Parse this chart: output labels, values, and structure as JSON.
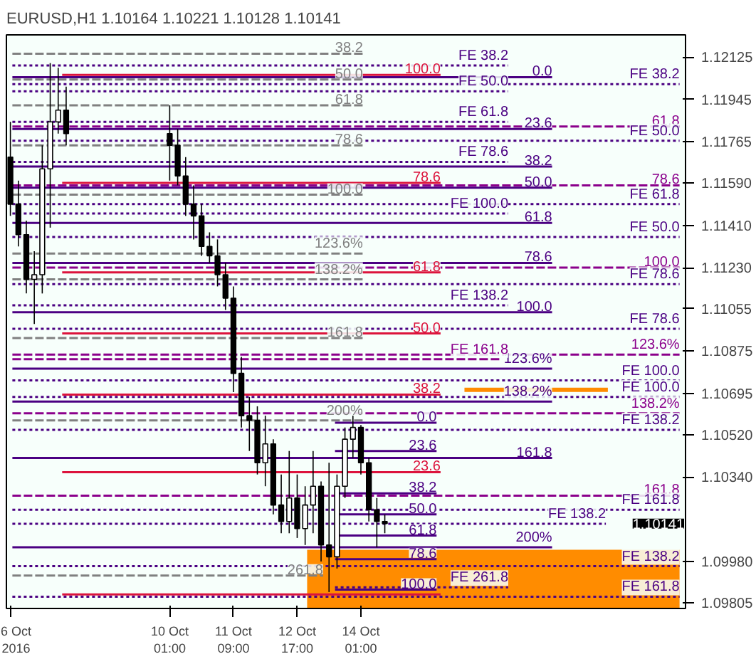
{
  "chart_data": {
    "type": "candlestick",
    "title": "EURUSD,H1  1.10164 1.10221 1.10128 1.10141",
    "x": [
      "2016-10-06T17:00",
      "2016-10-06T21:00",
      "2016-10-07T01:00",
      "2016-10-07T05:00",
      "2016-10-07T09:00",
      "2016-10-07T13:00",
      "2016-10-07T17:00",
      "2016-10-07T21:00",
      "2016-10-10T01:00",
      "2016-10-10T05:00",
      "2016-10-10T09:00",
      "2016-10-10T13:00",
      "2016-10-10T17:00",
      "2016-10-10T21:00",
      "2016-10-11T01:00",
      "2016-10-11T05:00",
      "2016-10-11T09:00",
      "2016-10-11T13:00",
      "2016-10-11T17:00",
      "2016-10-11T21:00",
      "2016-10-12T01:00",
      "2016-10-12T05:00",
      "2016-10-12T09:00",
      "2016-10-12T13:00",
      "2016-10-12T17:00",
      "2016-10-12T21:00",
      "2016-10-13T01:00",
      "2016-10-13T05:00",
      "2016-10-13T09:00",
      "2016-10-13T13:00",
      "2016-10-13T17:00",
      "2016-10-13T21:00",
      "2016-10-14T01:00",
      "2016-10-14T05:00",
      "2016-10-14T09:00",
      "2016-10-14T13:00"
    ],
    "ohlc": [
      [
        1.117,
        1.1185,
        1.1145,
        1.115
      ],
      [
        1.115,
        1.116,
        1.1132,
        1.1137
      ],
      [
        1.1137,
        1.1143,
        1.1112,
        1.1118
      ],
      [
        1.1118,
        1.113,
        1.1099,
        1.112
      ],
      [
        1.112,
        1.1175,
        1.1112,
        1.1165
      ],
      [
        1.1165,
        1.121,
        1.114,
        1.1185
      ],
      [
        1.1185,
        1.1208,
        1.118,
        1.119
      ],
      [
        1.119,
        1.12,
        1.1175,
        1.118
      ],
      [
        1.118,
        1.1192,
        1.116,
        1.1175
      ],
      [
        1.1175,
        1.1182,
        1.1158,
        1.1162
      ],
      [
        1.1162,
        1.117,
        1.1145,
        1.115
      ],
      [
        1.115,
        1.1158,
        1.1135,
        1.1145
      ],
      [
        1.1145,
        1.115,
        1.1128,
        1.1132
      ],
      [
        1.1132,
        1.1138,
        1.1125,
        1.1128
      ],
      [
        1.1128,
        1.1135,
        1.1115,
        1.112
      ],
      [
        1.112,
        1.1125,
        1.1105,
        1.111
      ],
      [
        1.111,
        1.1115,
        1.107,
        1.1078
      ],
      [
        1.1078,
        1.1085,
        1.1055,
        1.106
      ],
      [
        1.106,
        1.1068,
        1.1045,
        1.1058
      ],
      [
        1.1058,
        1.1064,
        1.1035,
        1.104
      ],
      [
        1.104,
        1.106,
        1.103,
        1.1048
      ],
      [
        1.1048,
        1.105,
        1.1018,
        1.1022
      ],
      [
        1.1022,
        1.1035,
        1.101,
        1.1015
      ],
      [
        1.1015,
        1.1045,
        1.101,
        1.1025
      ],
      [
        1.1025,
        1.1035,
        1.1008,
        1.1012
      ],
      [
        1.1012,
        1.103,
        1.1005,
        1.1022
      ],
      [
        1.1022,
        1.1045,
        1.101,
        1.103
      ],
      [
        1.103,
        1.1032,
        1.0998,
        1.1005
      ],
      [
        1.1005,
        1.104,
        1.0985,
        1.1
      ],
      [
        1.1,
        1.1035,
        1.0995,
        1.103
      ],
      [
        1.103,
        1.1055,
        1.1025,
        1.105
      ],
      [
        1.105,
        1.106,
        1.1042,
        1.1055
      ],
      [
        1.1055,
        1.1056,
        1.1035,
        1.104
      ],
      [
        1.104,
        1.1042,
        1.1015,
        1.102
      ],
      [
        1.102,
        1.1025,
        1.1004,
        1.1015
      ],
      [
        1.1015,
        1.1018,
        1.101,
        1.10141
      ]
    ],
    "color": "#000000",
    "series": [
      {
        "type": "area",
        "x": [
          "2016-10-12T22:00",
          "2016-10-20T17:00"
        ],
        "values": [
          1.1003,
          1.1003
        ],
        "color": "#ff8c00"
      },
      {
        "type": "line",
        "x": [
          "2016-10-06T18:00",
          "2016-10-20T17:00"
        ],
        "values": [
          1.1201,
          1.1201
        ],
        "color": "#4b0082",
        "line_style": "dotted"
      },
      {
        "type": "line",
        "x": [
          "2016-10-06T18:00",
          "2016-10-20T17:00"
        ],
        "values": [
          1.1183,
          1.1183
        ],
        "color": "#8b008b",
        "line_style": "dashed"
      },
      {
        "type": "line",
        "x": [
          "2016-10-06T18:00",
          "2016-10-20T17:00"
        ],
        "values": [
          1.1177,
          1.1177
        ],
        "color": "#4b0082",
        "line_style": "dotted"
      },
      {
        "type": "line",
        "x": [
          "2016-10-06T18:00",
          "2016-10-20T17:00"
        ],
        "values": [
          1.1158,
          1.1158
        ],
        "color": "#8b008b",
        "line_style": "dashed"
      },
      {
        "type": "line",
        "x": [
          "2016-10-06T18:00",
          "2016-10-20T17:00"
        ],
        "values": [
          1.115,
          1.115
        ],
        "color": "#4b0082",
        "line_style": "dotted"
      },
      {
        "type": "line",
        "x": [
          "2016-10-06T18:00",
          "2016-10-20T17:00"
        ],
        "values": [
          1.1136,
          1.1136
        ],
        "color": "#4b0082",
        "line_style": "dotted"
      },
      {
        "type": "line",
        "x": [
          "2016-10-06T18:00",
          "2016-10-20T17:00"
        ],
        "values": [
          1.1123,
          1.1123
        ],
        "color": "#8b008b",
        "line_style": "dashed"
      },
      {
        "type": "line",
        "x": [
          "2016-10-06T18:00",
          "2016-10-20T17:00"
        ],
        "values": [
          1.1116,
          1.1116
        ],
        "color": "#4b0082",
        "line_style": "dotted"
      },
      {
        "type": "line",
        "x": [
          "2016-10-06T18:00",
          "2016-10-20T17:00"
        ],
        "values": [
          1.1097,
          1.1097
        ],
        "color": "#4b0082",
        "line_style": "dotted"
      },
      {
        "type": "line",
        "x": [
          "2016-10-06T18:00",
          "2016-10-20T17:00"
        ],
        "values": [
          1.1086,
          1.1086
        ],
        "color": "#8b008b",
        "line_style": "dashed"
      },
      {
        "type": "line",
        "x": [
          "2016-10-06T18:00",
          "2016-10-20T17:00"
        ],
        "values": [
          1.1075,
          1.1075
        ],
        "color": "#4b0082",
        "line_style": "dotted"
      },
      {
        "type": "line",
        "x": [
          "2016-10-06T18:00",
          "2016-10-20T17:00"
        ],
        "values": [
          1.1068,
          1.1068
        ],
        "color": "#4b0082",
        "line_style": "dotted"
      },
      {
        "type": "line",
        "x": [
          "2016-10-06T18:00",
          "2016-10-20T17:00"
        ],
        "values": [
          1.1061,
          1.1061
        ],
        "color": "#8b008b",
        "line_style": "dashed"
      },
      {
        "type": "line",
        "x": [
          "2016-10-06T18:00",
          "2016-10-20T17:00"
        ],
        "values": [
          1.1054,
          1.1054
        ],
        "color": "#4b0082",
        "line_style": "dotted"
      },
      {
        "type": "line",
        "x": [
          "2016-10-06T18:00",
          "2016-10-20T17:00"
        ],
        "values": [
          1.1026,
          1.1026
        ],
        "color": "#8b008b",
        "line_style": "dashed"
      },
      {
        "type": "line",
        "x": [
          "2016-10-06T18:00",
          "2016-10-20T17:00"
        ],
        "values": [
          1.102,
          1.102
        ],
        "color": "#4b0082",
        "line_style": "dotted"
      },
      {
        "type": "line",
        "x": [
          "2016-10-06T18:00",
          "2016-10-19T04:00"
        ],
        "values": [
          1.1014,
          1.1014
        ],
        "color": "#4b0082",
        "line_style": "dotted"
      },
      {
        "type": "line",
        "x": [
          "2016-10-06T18:00",
          "2016-10-20T17:00"
        ],
        "values": [
          1.0996,
          1.0996
        ],
        "color": "#4b0082",
        "line_style": "dotted"
      },
      {
        "type": "line",
        "x": [
          "2016-10-06T18:00",
          "2016-10-20T17:00"
        ],
        "values": [
          1.0983,
          1.0983
        ],
        "color": "#4b0082",
        "line_style": "dotted"
      },
      {
        "type": "line",
        "x": [
          "2016-10-06T18:00",
          "2016-10-14T02:00"
        ],
        "values": [
          1.1214,
          1.1214
        ],
        "color": "#808080",
        "line_style": "dashed"
      },
      {
        "type": "line",
        "x": [
          "2016-10-06T18:00",
          "2016-10-14T02:00"
        ],
        "values": [
          1.1203,
          1.1203
        ],
        "color": "#808080",
        "line_style": "dashed"
      },
      {
        "type": "line",
        "x": [
          "2016-10-06T18:00",
          "2016-10-14T02:00"
        ],
        "values": [
          1.1192,
          1.1192
        ],
        "color": "#808080",
        "line_style": "dashed"
      },
      {
        "type": "line",
        "x": [
          "2016-10-06T18:00",
          "2016-10-14T02:00"
        ],
        "values": [
          1.1175,
          1.1175
        ],
        "color": "#808080",
        "line_style": "dashed"
      },
      {
        "type": "line",
        "x": [
          "2016-10-06T18:00",
          "2016-10-14T02:00"
        ],
        "values": [
          1.1154,
          1.1154
        ],
        "color": "#808080",
        "line_style": "dashed"
      },
      {
        "type": "line",
        "x": [
          "2016-10-06T18:00",
          "2016-10-14T02:00"
        ],
        "values": [
          1.1129,
          1.1129
        ],
        "color": "#808080",
        "line_style": "dashed"
      },
      {
        "type": "line",
        "x": [
          "2016-10-06T18:00",
          "2016-10-14T02:00"
        ],
        "values": [
          1.1118,
          1.1118
        ],
        "color": "#808080",
        "line_style": "dashed"
      },
      {
        "type": "line",
        "x": [
          "2016-10-06T18:00",
          "2016-10-14T02:00"
        ],
        "values": [
          1.1093,
          1.1093
        ],
        "color": "#808080",
        "line_style": "dashed"
      },
      {
        "type": "line",
        "x": [
          "2016-10-06T18:00",
          "2016-10-14T02:00"
        ],
        "values": [
          1.1058,
          1.1058
        ],
        "color": "#808080",
        "line_style": "dashed"
      },
      {
        "type": "line",
        "x": [
          "2016-10-06T18:00",
          "2016-10-13T06:00"
        ],
        "values": [
          1.0992,
          1.0992
        ],
        "color": "#808080",
        "line_style": "dashed"
      },
      {
        "type": "line",
        "x": [
          "2016-10-06T18:00",
          "2016-10-18T01:00"
        ],
        "values": [
          1.1204,
          1.1204
        ],
        "color": "#4b0082",
        "line_style": "solid"
      },
      {
        "type": "line",
        "x": [
          "2016-10-06T18:00",
          "2016-10-18T01:00"
        ],
        "values": [
          1.1182,
          1.1182
        ],
        "color": "#4b0082",
        "line_style": "solid"
      },
      {
        "type": "line",
        "x": [
          "2016-10-06T18:00",
          "2016-10-18T01:00"
        ],
        "values": [
          1.1166,
          1.1166
        ],
        "color": "#4b0082",
        "line_style": "solid"
      },
      {
        "type": "line",
        "x": [
          "2016-10-06T18:00",
          "2016-10-18T01:00"
        ],
        "values": [
          1.1157,
          1.1157
        ],
        "color": "#4b0082",
        "line_style": "solid"
      },
      {
        "type": "line",
        "x": [
          "2016-10-06T18:00",
          "2016-10-18T01:00"
        ],
        "values": [
          1.1142,
          1.1142
        ],
        "color": "#4b0082",
        "line_style": "solid"
      },
      {
        "type": "line",
        "x": [
          "2016-10-06T18:00",
          "2016-10-18T01:00"
        ],
        "values": [
          1.1125,
          1.1125
        ],
        "color": "#4b0082",
        "line_style": "solid"
      },
      {
        "type": "line",
        "x": [
          "2016-10-06T18:00",
          "2016-10-18T01:00"
        ],
        "values": [
          1.1104,
          1.1104
        ],
        "color": "#4b0082",
        "line_style": "solid"
      },
      {
        "type": "line",
        "x": [
          "2016-10-06T18:00",
          "2016-10-18T01:00"
        ],
        "values": [
          1.108,
          1.108
        ],
        "color": "#4b0082",
        "line_style": "solid"
      },
      {
        "type": "line",
        "x": [
          "2016-10-06T18:00",
          "2016-10-18T01:00"
        ],
        "values": [
          1.1066,
          1.1066
        ],
        "color": "#4b0082",
        "line_style": "solid"
      },
      {
        "type": "line",
        "x": [
          "2016-10-06T18:00",
          "2016-10-18T01:00"
        ],
        "values": [
          1.1042,
          1.1042
        ],
        "color": "#4b0082",
        "line_style": "solid"
      },
      {
        "type": "line",
        "x": [
          "2016-10-06T18:00",
          "2016-10-18T01:00"
        ],
        "values": [
          1.1004,
          1.1004
        ],
        "color": "#4b0082",
        "line_style": "solid"
      },
      {
        "type": "line",
        "x": [
          "2016-10-06T18:00",
          "2016-10-17T03:00"
        ],
        "values": [
          1.1209,
          1.1209
        ],
        "color": "#4b0082",
        "line_style": "dotted"
      },
      {
        "type": "line",
        "x": [
          "2016-10-06T18:00",
          "2016-10-17T03:00"
        ],
        "values": [
          1.1198,
          1.1198
        ],
        "color": "#4b0082",
        "line_style": "dotted"
      },
      {
        "type": "line",
        "x": [
          "2016-10-06T18:00",
          "2016-10-17T03:00"
        ],
        "values": [
          1.1185,
          1.1185
        ],
        "color": "#4b0082",
        "line_style": "dotted"
      },
      {
        "type": "line",
        "x": [
          "2016-10-06T18:00",
          "2016-10-17T03:00"
        ],
        "values": [
          1.1168,
          1.1168
        ],
        "color": "#4b0082",
        "line_style": "dotted"
      },
      {
        "type": "line",
        "x": [
          "2016-10-06T18:00",
          "2016-10-17T03:00"
        ],
        "values": [
          1.1146,
          1.1146
        ],
        "color": "#4b0082",
        "line_style": "dotted"
      },
      {
        "type": "line",
        "x": [
          "2016-10-06T18:00",
          "2016-10-17T03:00"
        ],
        "values": [
          1.1107,
          1.1107
        ],
        "color": "#4b0082",
        "line_style": "dotted"
      },
      {
        "type": "line",
        "x": [
          "2016-10-06T18:00",
          "2016-10-16T23:00"
        ],
        "values": [
          1.1084,
          1.1084
        ],
        "color": "#8b008b",
        "line_style": "dashed"
      },
      {
        "type": "line",
        "x": [
          "2016-10-13T12:00",
          "2016-10-17T03:00"
        ],
        "values": [
          1.0987,
          1.0987
        ],
        "color": "#4b0082",
        "line_style": "dotted"
      },
      {
        "type": "line",
        "x": [
          "2016-10-07T19:00",
          "2016-10-15T17:00"
        ],
        "values": [
          1.1205,
          1.1205
        ],
        "color": "#dc143c",
        "line_style": "solid"
      },
      {
        "type": "line",
        "x": [
          "2016-10-07T19:00",
          "2016-10-15T17:00"
        ],
        "values": [
          1.1159,
          1.1159
        ],
        "color": "#dc143c",
        "line_style": "solid"
      },
      {
        "type": "line",
        "x": [
          "2016-10-07T19:00",
          "2016-10-15T17:00"
        ],
        "values": [
          1.1121,
          1.1121
        ],
        "color": "#dc143c",
        "line_style": "solid"
      },
      {
        "type": "line",
        "x": [
          "2016-10-07T19:00",
          "2016-10-15T17:00"
        ],
        "values": [
          1.1095,
          1.1095
        ],
        "color": "#dc143c",
        "line_style": "solid"
      },
      {
        "type": "line",
        "x": [
          "2016-10-07T19:00",
          "2016-10-15T17:00"
        ],
        "values": [
          1.1069,
          1.1069
        ],
        "color": "#dc143c",
        "line_style": "solid"
      },
      {
        "type": "line",
        "x": [
          "2016-10-07T19:00",
          "2016-10-15T17:00"
        ],
        "values": [
          1.1036,
          1.1036
        ],
        "color": "#dc143c",
        "line_style": "solid"
      },
      {
        "type": "line",
        "x": [
          "2016-10-07T19:00",
          "2016-10-15T17:00"
        ],
        "values": [
          1.0984,
          1.0984
        ],
        "color": "#dc143c",
        "line_style": "solid"
      },
      {
        "type": "line",
        "x": [
          "2016-10-13T12:00",
          "2016-10-15T15:00"
        ],
        "values": [
          1.1057,
          1.1057
        ],
        "color": "#4b0082",
        "line_style": "solid"
      },
      {
        "type": "line",
        "x": [
          "2016-10-13T12:00",
          "2016-10-15T15:00"
        ],
        "values": [
          1.1045,
          1.1045
        ],
        "color": "#4b0082",
        "line_style": "solid"
      },
      {
        "type": "line",
        "x": [
          "2016-10-13T12:00",
          "2016-10-15T15:00"
        ],
        "values": [
          1.1027,
          1.1027
        ],
        "color": "#4b0082",
        "line_style": "solid"
      },
      {
        "type": "line",
        "x": [
          "2016-10-13T12:00",
          "2016-10-15T15:00"
        ],
        "values": [
          1.1018,
          1.1018
        ],
        "color": "#4b0082",
        "line_style": "solid"
      },
      {
        "type": "line",
        "x": [
          "2016-10-13T12:00",
          "2016-10-15T15:00"
        ],
        "values": [
          1.1009,
          1.1009
        ],
        "color": "#4b0082",
        "line_style": "solid"
      },
      {
        "type": "line",
        "x": [
          "2016-10-13T12:00",
          "2016-10-15T15:00"
        ],
        "values": [
          1.0999,
          1.0999
        ],
        "color": "#4b0082",
        "line_style": "solid"
      },
      {
        "type": "line",
        "x": [
          "2016-10-13T12:00",
          "2016-10-15T15:00"
        ],
        "values": [
          1.0986,
          1.0986
        ],
        "color": "#4b0082",
        "line_style": "solid"
      },
      {
        "type": "line",
        "x": [
          "2016-10-16T05:00",
          "2016-10-19T05:00"
        ],
        "values": [
          1.1071,
          1.1071
        ],
        "color": "#ff8c00",
        "line_style": "solid"
      }
    ],
    "annotations": [
      {
        "text": "FE 38.2",
        "x": "2016-10-20T17:00",
        "y": 1.1201
      },
      {
        "text": "61.8",
        "x": "2016-10-20T17:00",
        "y": 1.1183
      },
      {
        "text": "FE 50.0",
        "x": "2016-10-20T17:00",
        "y": 1.1177
      },
      {
        "text": "78.6",
        "x": "2016-10-20T17:00",
        "y": 1.1158
      },
      {
        "text": "FE 61.8",
        "x": "2016-10-20T17:00",
        "y": 1.115
      },
      {
        "text": "FE 50.0",
        "x": "2016-10-20T17:00",
        "y": 1.1136
      },
      {
        "text": "100.0",
        "x": "2016-10-20T17:00",
        "y": 1.1123
      },
      {
        "text": "FE 78.6",
        "x": "2016-10-20T17:00",
        "y": 1.1116
      },
      {
        "text": "FE 78.6",
        "x": "2016-10-20T17:00",
        "y": 1.1097
      },
      {
        "text": "123.6%",
        "x": "2016-10-20T17:00",
        "y": 1.1086
      },
      {
        "text": "FE 100.0",
        "x": "2016-10-20T17:00",
        "y": 1.1075
      },
      {
        "text": "FE 100.0",
        "x": "2016-10-20T17:00",
        "y": 1.1068
      },
      {
        "text": "138.2%",
        "x": "2016-10-20T17:00",
        "y": 1.1061
      },
      {
        "text": "FE 138.2",
        "x": "2016-10-20T17:00",
        "y": 1.1054
      },
      {
        "text": "161.8",
        "x": "2016-10-20T17:00",
        "y": 1.1026
      },
      {
        "text": "FE 161.8",
        "x": "2016-10-20T17:00",
        "y": 1.102
      },
      {
        "text": "FE 138.2",
        "x": "2016-10-19T04:00",
        "y": 1.1014
      },
      {
        "text": "FE 138.2",
        "x": "2016-10-20T17:00",
        "y": 1.0996
      },
      {
        "text": "FE 161.8",
        "x": "2016-10-20T17:00",
        "y": 1.0983
      },
      {
        "text": "38.2",
        "x": "2016-10-14T02:00",
        "y": 1.1214
      },
      {
        "text": "50.0",
        "x": "2016-10-14T02:00",
        "y": 1.1203
      },
      {
        "text": "61.8",
        "x": "2016-10-14T02:00",
        "y": 1.1192
      },
      {
        "text": "78.6",
        "x": "2016-10-14T02:00",
        "y": 1.1175
      },
      {
        "text": "100.0",
        "x": "2016-10-14T02:00",
        "y": 1.1154
      },
      {
        "text": "123.6%",
        "x": "2016-10-14T02:00",
        "y": 1.1129
      },
      {
        "text": "138.2%",
        "x": "2016-10-14T02:00",
        "y": 1.1118
      },
      {
        "text": "161.8",
        "x": "2016-10-14T02:00",
        "y": 1.1093
      },
      {
        "text": "200%",
        "x": "2016-10-14T02:00",
        "y": 1.1058
      },
      {
        "text": "261.8",
        "x": "2016-10-13T06:00",
        "y": 1.0992
      },
      {
        "text": "0.0",
        "x": "2016-10-18T01:00",
        "y": 1.1204
      },
      {
        "text": "23.6",
        "x": "2016-10-18T01:00",
        "y": 1.1182
      },
      {
        "text": "38.2",
        "x": "2016-10-18T01:00",
        "y": 1.1166
      },
      {
        "text": "50.0",
        "x": "2016-10-18T01:00",
        "y": 1.1157
      },
      {
        "text": "61.8",
        "x": "2016-10-18T01:00",
        "y": 1.1142
      },
      {
        "text": "78.6",
        "x": "2016-10-18T01:00",
        "y": 1.1125
      },
      {
        "text": "100.0",
        "x": "2016-10-18T01:00",
        "y": 1.1104
      },
      {
        "text": "123.6%",
        "x": "2016-10-18T01:00",
        "y": 1.108
      },
      {
        "text": "138.2%",
        "x": "2016-10-18T01:00",
        "y": 1.1066
      },
      {
        "text": "161.8",
        "x": "2016-10-18T01:00",
        "y": 1.1042
      },
      {
        "text": "200%",
        "x": "2016-10-18T01:00",
        "y": 1.1004
      },
      {
        "text": "FE 38.2",
        "x": "2016-10-17T03:00",
        "y": 1.1209
      },
      {
        "text": "FE 50.0",
        "x": "2016-10-17T03:00",
        "y": 1.1198
      },
      {
        "text": "FE 61.8",
        "x": "2016-10-17T03:00",
        "y": 1.1185
      },
      {
        "text": "FE 78.6",
        "x": "2016-10-17T03:00",
        "y": 1.1168
      },
      {
        "text": "FE 100.0",
        "x": "2016-10-17T03:00",
        "y": 1.1146
      },
      {
        "text": "FE 138.2",
        "x": "2016-10-17T03:00",
        "y": 1.1107
      },
      {
        "text": "FE 161.8",
        "x": "2016-10-17T03:00",
        "y": 1.1084
      },
      {
        "text": "FE 261.8",
        "x": "2016-10-17T03:00",
        "y": 1.0987
      },
      {
        "text": "100.0",
        "x": "2016-10-15T17:00",
        "y": 1.1205
      },
      {
        "text": "78.6",
        "x": "2016-10-15T17:00",
        "y": 1.1159
      },
      {
        "text": "61.8",
        "x": "2016-10-15T17:00",
        "y": 1.1121
      },
      {
        "text": "50.0",
        "x": "2016-10-15T17:00",
        "y": 1.1095
      },
      {
        "text": "38.2",
        "x": "2016-10-15T17:00",
        "y": 1.1069
      },
      {
        "text": "23.6",
        "x": "2016-10-15T17:00",
        "y": 1.1036
      },
      {
        "text": "0.0",
        "x": "2016-10-15T15:00",
        "y": 1.1057
      },
      {
        "text": "23.6",
        "x": "2016-10-15T15:00",
        "y": 1.1045
      },
      {
        "text": "38.2",
        "x": "2016-10-15T15:00",
        "y": 1.1027
      },
      {
        "text": "50.0",
        "x": "2016-10-15T15:00",
        "y": 1.1018
      },
      {
        "text": "61.8",
        "x": "2016-10-15T15:00",
        "y": 1.1009
      },
      {
        "text": "78.6",
        "x": "2016-10-15T15:00",
        "y": 1.0999
      },
      {
        "text": "100.0",
        "x": "2016-10-15T15:00",
        "y": 1.0986
      },
      "1.10141"
    ],
    "xlim": [
      "2016-10-06T15:00",
      "2016-10-20T20:00"
    ],
    "xticks": [
      {
        "value": "2016-10-06T17:00",
        "label": "6 Oct 2016"
      },
      {
        "value": "2016-10-10T01:00",
        "label": "10 Oct 01:00"
      },
      {
        "value": "2016-10-11T09:00",
        "label": "11 Oct 09:00"
      },
      {
        "value": "2016-10-12T17:00",
        "label": "12 Oct 17:00"
      },
      {
        "value": "2016-10-14T01:00",
        "label": "14 Oct 01:00"
      }
    ],
    "ylim": [
      1.0978,
      1.1222
    ],
    "yticks": [
      {
        "value": 1.12125,
        "label": "1.12125"
      },
      {
        "value": 1.11945,
        "label": "1.11945"
      },
      {
        "value": 1.11765,
        "label": "1.11765"
      },
      {
        "value": 1.1159,
        "label": "1.11590"
      },
      {
        "value": 1.1141,
        "label": "1.11410"
      },
      {
        "value": 1.1123,
        "label": "1.11230"
      },
      {
        "value": 1.11055,
        "label": "1.11055"
      },
      {
        "value": 1.10875,
        "label": "1.10875"
      },
      {
        "value": 1.10695,
        "label": "1.10695"
      },
      {
        "value": 1.1052,
        "label": "1.10520"
      },
      {
        "value": 1.1034,
        "label": "1.10340"
      },
      {
        "value": 1.0998,
        "label": "1.09980"
      },
      {
        "value": 1.09805,
        "label": "1.09805"
      }
    ]
  }
}
